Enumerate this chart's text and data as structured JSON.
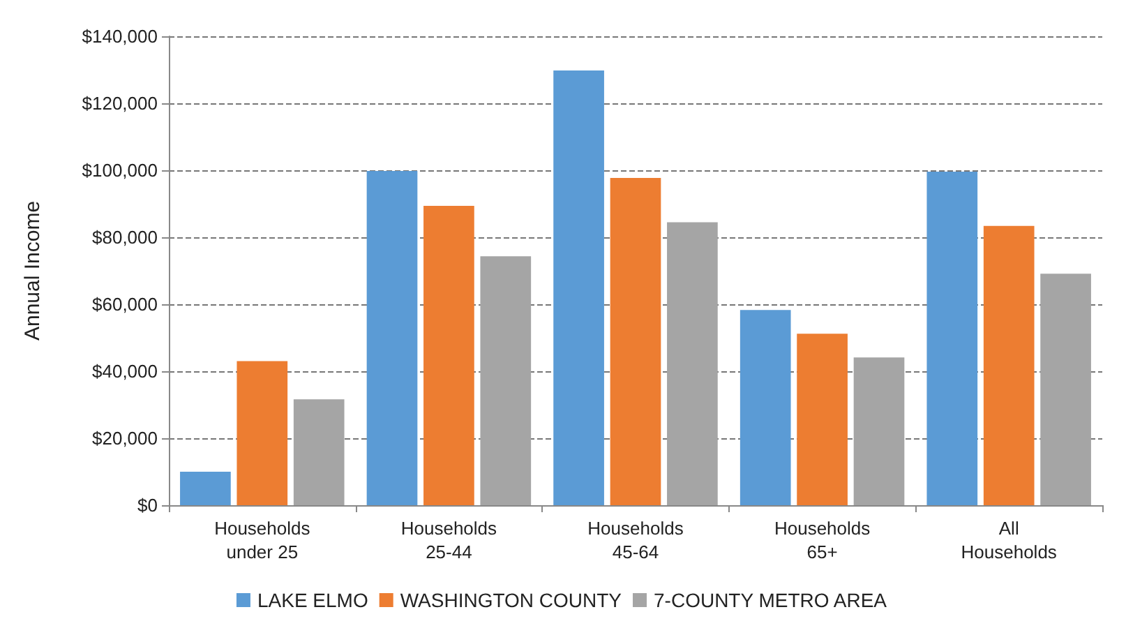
{
  "chart_data": {
    "type": "bar",
    "ylabel": "Annual Income",
    "categories": [
      "Households\nunder 25",
      "Households\n25-44",
      "Households\n45-64",
      "Households\n65+",
      "All\nHouseholds"
    ],
    "series": [
      {
        "name": "LAKE ELMO",
        "color": "#5b9bd5",
        "values": [
          10000,
          99800,
          129800,
          58300,
          99600
        ]
      },
      {
        "name": "WASHINGTON COUNTY",
        "color": "#ed7d31",
        "values": [
          43000,
          89400,
          97700,
          51200,
          83400
        ]
      },
      {
        "name": "7-COUNTY METRO AREA",
        "color": "#a5a5a5",
        "values": [
          31600,
          74300,
          84500,
          44100,
          69100
        ]
      }
    ],
    "ylim": [
      0,
      140000
    ],
    "yticks": [
      {
        "value": 0,
        "label": "$0"
      },
      {
        "value": 20000,
        "label": "$20,000"
      },
      {
        "value": 40000,
        "label": "$40,000"
      },
      {
        "value": 60000,
        "label": "$60,000"
      },
      {
        "value": 80000,
        "label": "$80,000"
      },
      {
        "value": 100000,
        "label": "$100,000"
      },
      {
        "value": 120000,
        "label": "$120,000"
      },
      {
        "value": 140000,
        "label": "$140,000"
      }
    ],
    "grid": "y",
    "legend": "bottom"
  }
}
